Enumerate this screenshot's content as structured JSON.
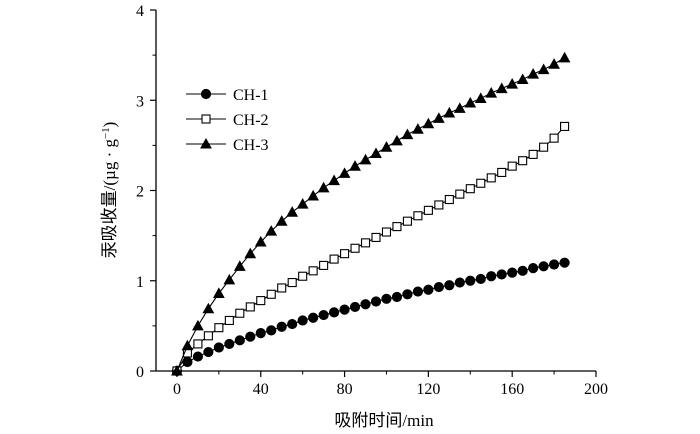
{
  "chart_data": {
    "type": "line",
    "xlabel": "吸附时间/min",
    "ylabel": "汞吸收量/(µg · g",
    "ylabel_sup": "−1",
    "ylabel_close": ")",
    "xlim": [
      -10,
      200
    ],
    "ylim": [
      0,
      4
    ],
    "x_ticks": [
      "0",
      "40",
      "80",
      "120",
      "160",
      "200"
    ],
    "y_ticks": [
      "0",
      "1",
      "2",
      "3",
      "4"
    ],
    "legend_position": "upper-left",
    "line_color": "#000000",
    "series": [
      {
        "name": "CH-1",
        "marker": "circle-filled",
        "x": [
          0,
          5,
          10,
          15,
          20,
          25,
          30,
          35,
          40,
          45,
          50,
          55,
          60,
          65,
          70,
          75,
          80,
          85,
          90,
          95,
          100,
          105,
          110,
          115,
          120,
          125,
          130,
          135,
          140,
          145,
          150,
          155,
          160,
          165,
          170,
          175,
          180,
          185
        ],
        "y": [
          0.0,
          0.1,
          0.16,
          0.21,
          0.26,
          0.3,
          0.34,
          0.38,
          0.42,
          0.45,
          0.49,
          0.52,
          0.56,
          0.59,
          0.62,
          0.65,
          0.68,
          0.71,
          0.74,
          0.77,
          0.8,
          0.82,
          0.85,
          0.88,
          0.9,
          0.93,
          0.95,
          0.98,
          1.0,
          1.02,
          1.05,
          1.07,
          1.09,
          1.11,
          1.14,
          1.16,
          1.18,
          1.2
        ]
      },
      {
        "name": "CH-2",
        "marker": "square-open",
        "x": [
          0,
          5,
          10,
          15,
          20,
          25,
          30,
          35,
          40,
          45,
          50,
          55,
          60,
          65,
          70,
          75,
          80,
          85,
          90,
          95,
          100,
          105,
          110,
          115,
          120,
          125,
          130,
          135,
          140,
          145,
          150,
          155,
          160,
          165,
          170,
          175,
          180,
          185
        ],
        "y": [
          0.0,
          0.2,
          0.3,
          0.39,
          0.48,
          0.56,
          0.64,
          0.71,
          0.78,
          0.85,
          0.92,
          0.98,
          1.05,
          1.11,
          1.17,
          1.24,
          1.3,
          1.36,
          1.42,
          1.48,
          1.54,
          1.6,
          1.66,
          1.72,
          1.78,
          1.84,
          1.9,
          1.96,
          2.02,
          2.08,
          2.14,
          2.2,
          2.27,
          2.33,
          2.4,
          2.48,
          2.58,
          2.71
        ]
      },
      {
        "name": "CH-3",
        "marker": "triangle-filled",
        "x": [
          0,
          5,
          10,
          15,
          20,
          25,
          30,
          35,
          40,
          45,
          50,
          55,
          60,
          65,
          70,
          75,
          80,
          85,
          90,
          95,
          100,
          105,
          110,
          115,
          120,
          125,
          130,
          135,
          140,
          145,
          150,
          155,
          160,
          165,
          170,
          175,
          180,
          185
        ],
        "y": [
          0.0,
          0.28,
          0.5,
          0.69,
          0.86,
          1.01,
          1.16,
          1.3,
          1.43,
          1.55,
          1.66,
          1.76,
          1.85,
          1.94,
          2.03,
          2.11,
          2.19,
          2.27,
          2.34,
          2.41,
          2.48,
          2.55,
          2.62,
          2.68,
          2.74,
          2.8,
          2.86,
          2.91,
          2.97,
          3.02,
          3.08,
          3.13,
          3.18,
          3.23,
          3.29,
          3.34,
          3.4,
          3.47
        ]
      }
    ]
  }
}
